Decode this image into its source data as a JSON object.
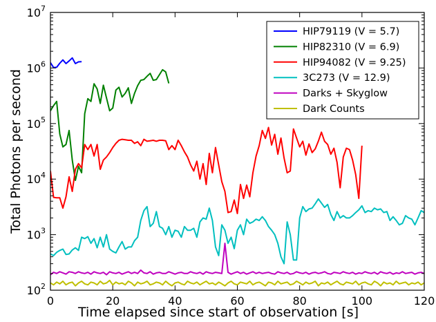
{
  "chart_data": {
    "type": "line",
    "xlabel": "Time elapsed since start of observation [s]",
    "ylabel": "Total Photons per second",
    "xlim": [
      0,
      120
    ],
    "ylim": [
      100,
      10000000
    ],
    "yscale": "log",
    "grid": false,
    "legend_position": "top-right",
    "x_ticks": [
      {
        "value": 0,
        "label": "0"
      },
      {
        "value": 20,
        "label": "20"
      },
      {
        "value": 40,
        "label": "40"
      },
      {
        "value": 60,
        "label": "60"
      },
      {
        "value": 80,
        "label": "80"
      },
      {
        "value": 100,
        "label": "100"
      },
      {
        "value": 120,
        "label": "120"
      }
    ],
    "y_ticks": [
      {
        "value": 100,
        "base": "10",
        "exp": "2"
      },
      {
        "value": 1000,
        "base": "10",
        "exp": "3"
      },
      {
        "value": 10000,
        "base": "10",
        "exp": "4"
      },
      {
        "value": 100000,
        "base": "10",
        "exp": "5"
      },
      {
        "value": 1000000,
        "base": "10",
        "exp": "6"
      },
      {
        "value": 10000000,
        "base": "10",
        "exp": "7"
      }
    ],
    "series": [
      {
        "name": "HIP79119 (V = 5.7)",
        "color": "#0000ff",
        "x": [
          0,
          1,
          2,
          3,
          4,
          5,
          6,
          7,
          8,
          9,
          10
        ],
        "y": [
          1250000,
          1020000,
          1030000,
          1220000,
          1400000,
          1200000,
          1340000,
          1520000,
          1200000,
          1290000,
          1300000
        ]
      },
      {
        "name": "HIP82310 (V = 6.9)",
        "color": "#008000",
        "x": [
          0,
          1,
          2,
          3,
          4,
          5,
          6,
          7,
          8,
          9,
          10,
          11,
          12,
          13,
          14,
          15,
          16,
          17,
          18,
          19,
          20,
          21,
          22,
          23,
          24,
          25,
          26,
          27,
          28,
          29,
          30,
          31,
          32,
          33,
          34,
          35,
          36,
          37,
          38
        ],
        "y": [
          170000,
          210000,
          250000,
          65000,
          38000,
          42000,
          75000,
          22000,
          9500,
          17000,
          13000,
          150000,
          280000,
          250000,
          520000,
          420000,
          230000,
          490000,
          290000,
          170000,
          190000,
          400000,
          450000,
          300000,
          350000,
          440000,
          230000,
          350000,
          480000,
          600000,
          620000,
          710000,
          800000,
          600000,
          620000,
          760000,
          930000,
          850000,
          530000
        ]
      },
      {
        "name": "HIP94082 (V = 9.25)",
        "color": "#ff0000",
        "x": [
          0,
          1,
          2,
          3,
          4,
          5,
          6,
          7,
          8,
          9,
          10,
          11,
          12,
          13,
          14,
          15,
          16,
          17,
          18,
          19,
          20,
          21,
          22,
          23,
          24,
          25,
          26,
          27,
          28,
          29,
          30,
          31,
          32,
          33,
          34,
          35,
          36,
          37,
          38,
          39,
          40,
          41,
          42,
          43,
          44,
          45,
          46,
          47,
          48,
          49,
          50,
          51,
          52,
          53,
          54,
          55,
          56,
          57,
          58,
          59,
          60,
          61,
          62,
          63,
          64,
          65,
          66,
          67,
          68,
          69,
          70,
          71,
          72,
          73,
          74,
          75,
          76,
          77,
          78,
          79,
          80,
          81,
          82,
          83,
          84,
          85,
          86,
          87,
          88,
          89,
          90,
          91,
          92,
          93,
          94,
          95,
          96,
          97,
          98,
          99,
          100
        ],
        "y": [
          14000,
          4700,
          4600,
          4600,
          3000,
          4800,
          11000,
          6000,
          15000,
          19000,
          16000,
          42000,
          34000,
          42000,
          26000,
          42000,
          15000,
          22000,
          25000,
          30000,
          37000,
          44000,
          50000,
          52000,
          51000,
          50000,
          50000,
          44000,
          47000,
          40000,
          52000,
          48000,
          49000,
          50000,
          48000,
          50000,
          50000,
          49000,
          34000,
          40000,
          34000,
          50000,
          40000,
          31000,
          25000,
          18000,
          14000,
          21000,
          10000,
          19000,
          8000,
          29000,
          13000,
          37000,
          18000,
          9000,
          6000,
          2500,
          2600,
          4200,
          2400,
          8000,
          4500,
          7800,
          4800,
          13000,
          26000,
          40000,
          75000,
          54000,
          85000,
          41000,
          64000,
          28000,
          55000,
          24000,
          13000,
          14000,
          80000,
          55000,
          38000,
          48000,
          27000,
          43000,
          30000,
          35000,
          48000,
          70000,
          48000,
          42000,
          28000,
          36000,
          20000,
          7000,
          25000,
          36000,
          34000,
          22000,
          12000,
          4500,
          40000
        ]
      },
      {
        "name": "3C273 (V = 12.9)",
        "color": "#00bfbf",
        "x": [
          0,
          1,
          2,
          3,
          4,
          5,
          6,
          7,
          8,
          9,
          10,
          11,
          12,
          13,
          14,
          15,
          16,
          17,
          18,
          19,
          20,
          21,
          22,
          23,
          24,
          25,
          26,
          27,
          28,
          29,
          30,
          31,
          32,
          33,
          34,
          35,
          36,
          37,
          38,
          39,
          40,
          41,
          42,
          43,
          44,
          45,
          46,
          47,
          48,
          49,
          50,
          51,
          52,
          53,
          54,
          55,
          56,
          57,
          58,
          59,
          60,
          61,
          62,
          63,
          64,
          65,
          66,
          67,
          68,
          69,
          70,
          71,
          72,
          73,
          74,
          75,
          76,
          77,
          78,
          79,
          80,
          81,
          82,
          83,
          84,
          85,
          86,
          87,
          88,
          89,
          90,
          91,
          92,
          93,
          94,
          95,
          96,
          97,
          98,
          99,
          100,
          101,
          102,
          103,
          104,
          105,
          106,
          107,
          108,
          109,
          110,
          111,
          112,
          113,
          114,
          115,
          116,
          117,
          118,
          119,
          120
        ],
        "y": [
          450,
          420,
          480,
          520,
          550,
          440,
          450,
          530,
          580,
          520,
          900,
          850,
          920,
          700,
          850,
          580,
          900,
          600,
          1000,
          550,
          500,
          470,
          600,
          750,
          550,
          600,
          600,
          780,
          900,
          1800,
          2700,
          3200,
          1400,
          1600,
          2600,
          1400,
          1300,
          1000,
          1400,
          900,
          1200,
          1150,
          900,
          1400,
          1200,
          1200,
          1300,
          900,
          1700,
          2000,
          1900,
          3000,
          1800,
          600,
          420,
          1500,
          1200,
          700,
          900,
          560,
          1200,
          1500,
          1000,
          1900,
          1600,
          1700,
          1900,
          1800,
          2100,
          1800,
          1400,
          1200,
          1000,
          700,
          400,
          300,
          1700,
          1000,
          350,
          350,
          2000,
          3200,
          2600,
          2900,
          3000,
          3600,
          4400,
          3700,
          3100,
          3500,
          2300,
          1800,
          2600,
          2000,
          2200,
          2000,
          2000,
          2200,
          2500,
          2800,
          3300,
          2500,
          2700,
          2600,
          3000,
          2800,
          2900,
          2500,
          2600,
          1800,
          2100,
          1800,
          1500,
          1600,
          2200,
          2000,
          1900,
          1500,
          2000,
          2700,
          2500
        ]
      },
      {
        "name": "Darks + Skyglow",
        "color": "#bf00bf",
        "x": [
          0,
          1,
          2,
          3,
          4,
          5,
          6,
          7,
          8,
          9,
          10,
          11,
          12,
          13,
          14,
          15,
          16,
          17,
          18,
          19,
          20,
          21,
          22,
          23,
          24,
          25,
          26,
          27,
          28,
          29,
          30,
          31,
          32,
          33,
          34,
          35,
          36,
          37,
          38,
          39,
          40,
          41,
          42,
          43,
          44,
          45,
          46,
          47,
          48,
          49,
          50,
          51,
          52,
          53,
          54,
          55,
          56,
          57,
          58,
          59,
          60,
          61,
          62,
          63,
          64,
          65,
          66,
          67,
          68,
          69,
          70,
          71,
          72,
          73,
          74,
          75,
          76,
          77,
          78,
          79,
          80,
          81,
          82,
          83,
          84,
          85,
          86,
          87,
          88,
          89,
          90,
          91,
          92,
          93,
          94,
          95,
          96,
          97,
          98,
          99,
          100,
          101,
          102,
          103,
          104,
          105,
          106,
          107,
          108,
          109,
          110,
          111,
          112,
          113,
          114,
          115,
          116,
          117,
          118,
          119,
          120
        ],
        "y": [
          190,
          210,
          200,
          215,
          205,
          195,
          215,
          210,
          200,
          215,
          205,
          200,
          210,
          195,
          215,
          205,
          200,
          210,
          190,
          215,
          205,
          200,
          210,
          195,
          205,
          215,
          200,
          210,
          200,
          230,
          205,
          200,
          215,
          195,
          205,
          210,
          200,
          200,
          215,
          205,
          195,
          205,
          210,
          200,
          200,
          215,
          205,
          200,
          210,
          195,
          215,
          205,
          200,
          210,
          205,
          200,
          700,
          210,
          195,
          205,
          215,
          200,
          210,
          195,
          205,
          215,
          200,
          210,
          200,
          205,
          210,
          200,
          195,
          215,
          205,
          200,
          210,
          195,
          200,
          215,
          205,
          200,
          210,
          195,
          205,
          210,
          200,
          205,
          215,
          200,
          195,
          210,
          205,
          200,
          215,
          205,
          200,
          210,
          195,
          205,
          200,
          215,
          205,
          200,
          210,
          195,
          215,
          205,
          200,
          210,
          195,
          205,
          200,
          215,
          200,
          205,
          210,
          195,
          205,
          210,
          200
        ]
      },
      {
        "name": "Dark Counts",
        "color": "#bfbf00",
        "x": [
          0,
          1,
          2,
          3,
          4,
          5,
          6,
          7,
          8,
          9,
          10,
          11,
          12,
          13,
          14,
          15,
          16,
          17,
          18,
          19,
          20,
          21,
          22,
          23,
          24,
          25,
          26,
          27,
          28,
          29,
          30,
          31,
          32,
          33,
          34,
          35,
          36,
          37,
          38,
          39,
          40,
          41,
          42,
          43,
          44,
          45,
          46,
          47,
          48,
          49,
          50,
          51,
          52,
          53,
          54,
          55,
          56,
          57,
          58,
          59,
          60,
          61,
          62,
          63,
          64,
          65,
          66,
          67,
          68,
          69,
          70,
          71,
          72,
          73,
          74,
          75,
          76,
          77,
          78,
          79,
          80,
          81,
          82,
          83,
          84,
          85,
          86,
          87,
          88,
          89,
          90,
          91,
          92,
          93,
          94,
          95,
          96,
          97,
          98,
          99,
          100,
          101,
          102,
          103,
          104,
          105,
          106,
          107,
          108,
          109,
          110,
          111,
          112,
          113,
          114,
          115,
          116,
          117,
          118,
          119,
          120
        ],
        "y": [
          135,
          125,
          140,
          130,
          145,
          125,
          135,
          140,
          120,
          135,
          145,
          130,
          125,
          140,
          135,
          125,
          145,
          130,
          135,
          150,
          125,
          140,
          130,
          135,
          125,
          145,
          135,
          120,
          140,
          130,
          135,
          145,
          125,
          130,
          140,
          135,
          125,
          145,
          130,
          120,
          135,
          140,
          130,
          125,
          145,
          135,
          130,
          140,
          125,
          135,
          145,
          130,
          135,
          125,
          140,
          130,
          120,
          135,
          145,
          130,
          125,
          140,
          135,
          130,
          145,
          125,
          135,
          140,
          130,
          120,
          140,
          135,
          125,
          145,
          130,
          135,
          140,
          125,
          130,
          145,
          135,
          125,
          140,
          130,
          135,
          145,
          120,
          135,
          130,
          140,
          125,
          135,
          145,
          130,
          125,
          140,
          135,
          130,
          145,
          125,
          135,
          140,
          130,
          125,
          145,
          135,
          120,
          140,
          130,
          135,
          125,
          145,
          130,
          135,
          140,
          125,
          135,
          130,
          140,
          125,
          135
        ]
      }
    ]
  }
}
